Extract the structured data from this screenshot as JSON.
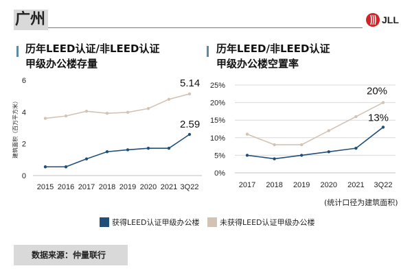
{
  "header": {
    "city": "广州",
    "logo_text": "JLL"
  },
  "left_panel": {
    "title_line1": "历年LEED认证/非LEED认证",
    "title_line2": "甲级办公楼存量"
  },
  "right_panel": {
    "title_line1": "历年LEED/非LEED认证",
    "title_line2": "甲级办公楼空置率"
  },
  "note": "(统计口径为建筑面积)",
  "legend": {
    "leed": "获得LEED认证甲级办公楼",
    "non_leed": "未获得LEED认证甲级办公楼"
  },
  "source": "数据来源：仲量联行",
  "colors": {
    "leed": "#1f4e79",
    "non_leed": "#d3c3b5",
    "accent_bar": "#5e8aa0",
    "logo_red": "#d0232a"
  },
  "chart_data": [
    {
      "type": "line",
      "title": "历年LEED认证/非LEED认证甲级办公楼存量",
      "ylabel": "建筑面积（百万平方米）",
      "ylim": [
        0,
        6
      ],
      "yticks": [
        "0",
        "2",
        "4",
        "6"
      ],
      "categories": [
        "2015",
        "2016",
        "2017",
        "2018",
        "2019",
        "2020",
        "2021",
        "3Q22"
      ],
      "series": [
        {
          "name": "获得LEED认证甲级办公楼",
          "values": [
            0.55,
            0.55,
            1.05,
            1.5,
            1.62,
            1.72,
            1.72,
            2.59
          ]
        },
        {
          "name": "未获得LEED认证甲级办公楼",
          "values": [
            3.6,
            3.75,
            4.05,
            3.92,
            3.98,
            4.22,
            4.8,
            5.14
          ]
        }
      ],
      "data_labels": {
        "leed_last": "2.59",
        "non_leed_last": "5.14"
      }
    },
    {
      "type": "line",
      "title": "历年LEED/非LEED认证甲级办公楼空置率",
      "ylim": [
        0,
        25
      ],
      "yticks": [
        "0%",
        "5%",
        "10%",
        "15%",
        "20%",
        "25%"
      ],
      "categories": [
        "2017",
        "2018",
        "2019",
        "2020",
        "2021",
        "3Q22"
      ],
      "series": [
        {
          "name": "获得LEED认证甲级办公楼",
          "values": [
            5,
            4,
            5,
            6,
            7,
            13
          ]
        },
        {
          "name": "未获得LEED认证甲级办公楼",
          "values": [
            11,
            8,
            8,
            12,
            16,
            20
          ]
        }
      ],
      "data_labels": {
        "leed_last": "13%",
        "non_leed_last": "20%"
      }
    }
  ]
}
